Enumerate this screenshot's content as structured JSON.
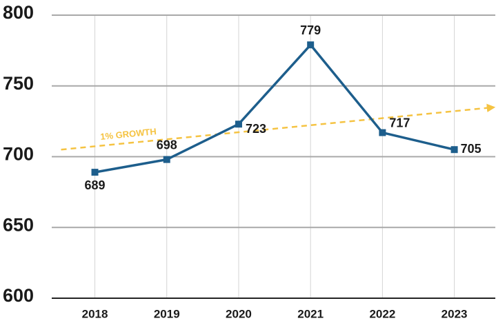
{
  "chart_data": {
    "type": "line",
    "x": [
      2018,
      2019,
      2020,
      2021,
      2022,
      2023
    ],
    "series": [
      {
        "color": "#1d5e8c",
        "values": [
          689,
          698,
          723,
          779,
          717,
          705
        ]
      }
    ],
    "xlim": [
      2017.4,
      2023.57
    ],
    "xticks": [
      2018,
      2019,
      2020,
      2021,
      2022,
      2023
    ],
    "ylim": [
      600,
      800
    ],
    "yticks": [
      600,
      650,
      700,
      750,
      800
    ],
    "grid": true,
    "trend": {
      "label": "1% GROWTH",
      "color": "#f5c342",
      "x": [
        2017.53,
        2023.57
      ],
      "values": [
        705,
        735
      ]
    }
  }
}
